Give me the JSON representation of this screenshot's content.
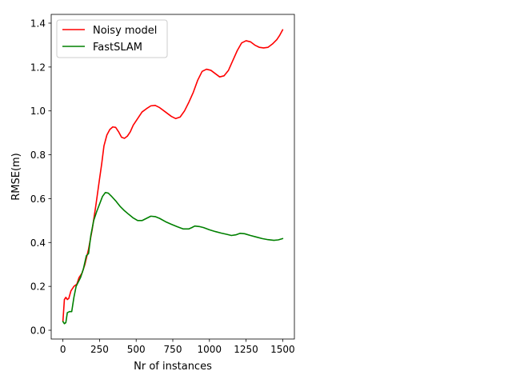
{
  "chart_data": {
    "type": "line",
    "title": "",
    "xlabel": "Nr of instances",
    "ylabel": "RMSE(m)",
    "xlim": [
      -80,
      1580
    ],
    "ylim": [
      -0.04,
      1.44
    ],
    "xticks": [
      0,
      250,
      500,
      750,
      1000,
      1250,
      1500
    ],
    "xtick_labels": [
      "0",
      "250",
      "500",
      "750",
      "1000",
      "1250",
      "1500"
    ],
    "yticks": [
      0.0,
      0.2,
      0.4,
      0.6,
      0.8,
      1.0,
      1.2,
      1.4
    ],
    "ytick_labels": [
      "0.0",
      "0.2",
      "0.4",
      "0.6",
      "0.8",
      "1.0",
      "1.2",
      "1.4"
    ],
    "grid": false,
    "legend_position": "upper-left",
    "series": [
      {
        "name": "Noisy model",
        "color": "#ff0000",
        "points": [
          [
            0,
            0.04
          ],
          [
            10,
            0.14
          ],
          [
            20,
            0.15
          ],
          [
            30,
            0.14
          ],
          [
            40,
            0.145
          ],
          [
            55,
            0.18
          ],
          [
            75,
            0.2
          ],
          [
            95,
            0.21
          ],
          [
            110,
            0.24
          ],
          [
            130,
            0.26
          ],
          [
            150,
            0.3
          ],
          [
            175,
            0.37
          ],
          [
            200,
            0.46
          ],
          [
            225,
            0.57
          ],
          [
            250,
            0.69
          ],
          [
            265,
            0.76
          ],
          [
            280,
            0.84
          ],
          [
            300,
            0.89
          ],
          [
            320,
            0.915
          ],
          [
            340,
            0.927
          ],
          [
            360,
            0.925
          ],
          [
            380,
            0.905
          ],
          [
            400,
            0.88
          ],
          [
            420,
            0.875
          ],
          [
            440,
            0.885
          ],
          [
            460,
            0.905
          ],
          [
            480,
            0.935
          ],
          [
            510,
            0.965
          ],
          [
            540,
            0.995
          ],
          [
            570,
            1.01
          ],
          [
            600,
            1.023
          ],
          [
            630,
            1.025
          ],
          [
            660,
            1.015
          ],
          [
            700,
            0.995
          ],
          [
            740,
            0.975
          ],
          [
            770,
            0.965
          ],
          [
            800,
            0.972
          ],
          [
            830,
            1.0
          ],
          [
            860,
            1.04
          ],
          [
            890,
            1.085
          ],
          [
            920,
            1.14
          ],
          [
            950,
            1.18
          ],
          [
            980,
            1.19
          ],
          [
            1010,
            1.185
          ],
          [
            1040,
            1.17
          ],
          [
            1070,
            1.155
          ],
          [
            1100,
            1.16
          ],
          [
            1130,
            1.185
          ],
          [
            1160,
            1.23
          ],
          [
            1190,
            1.275
          ],
          [
            1220,
            1.31
          ],
          [
            1250,
            1.32
          ],
          [
            1280,
            1.315
          ],
          [
            1310,
            1.3
          ],
          [
            1340,
            1.29
          ],
          [
            1370,
            1.287
          ],
          [
            1400,
            1.29
          ],
          [
            1430,
            1.305
          ],
          [
            1460,
            1.325
          ],
          [
            1480,
            1.345
          ],
          [
            1500,
            1.37
          ]
        ]
      },
      {
        "name": "FastSLAM",
        "color": "#008000",
        "points": [
          [
            0,
            0.04
          ],
          [
            10,
            0.03
          ],
          [
            20,
            0.035
          ],
          [
            30,
            0.08
          ],
          [
            45,
            0.085
          ],
          [
            60,
            0.085
          ],
          [
            75,
            0.15
          ],
          [
            90,
            0.2
          ],
          [
            105,
            0.22
          ],
          [
            120,
            0.24
          ],
          [
            140,
            0.28
          ],
          [
            160,
            0.34
          ],
          [
            175,
            0.35
          ],
          [
            190,
            0.43
          ],
          [
            210,
            0.5
          ],
          [
            230,
            0.54
          ],
          [
            250,
            0.575
          ],
          [
            270,
            0.61
          ],
          [
            290,
            0.628
          ],
          [
            310,
            0.625
          ],
          [
            330,
            0.612
          ],
          [
            360,
            0.59
          ],
          [
            390,
            0.565
          ],
          [
            420,
            0.545
          ],
          [
            450,
            0.528
          ],
          [
            480,
            0.512
          ],
          [
            510,
            0.5
          ],
          [
            540,
            0.5
          ],
          [
            570,
            0.51
          ],
          [
            600,
            0.52
          ],
          [
            630,
            0.518
          ],
          [
            660,
            0.51
          ],
          [
            700,
            0.495
          ],
          [
            740,
            0.483
          ],
          [
            780,
            0.472
          ],
          [
            820,
            0.462
          ],
          [
            860,
            0.462
          ],
          [
            880,
            0.468
          ],
          [
            900,
            0.475
          ],
          [
            930,
            0.473
          ],
          [
            960,
            0.468
          ],
          [
            1000,
            0.458
          ],
          [
            1040,
            0.45
          ],
          [
            1080,
            0.443
          ],
          [
            1120,
            0.437
          ],
          [
            1150,
            0.432
          ],
          [
            1180,
            0.435
          ],
          [
            1210,
            0.442
          ],
          [
            1240,
            0.44
          ],
          [
            1280,
            0.432
          ],
          [
            1320,
            0.425
          ],
          [
            1360,
            0.418
          ],
          [
            1400,
            0.413
          ],
          [
            1440,
            0.41
          ],
          [
            1470,
            0.412
          ],
          [
            1500,
            0.418
          ]
        ]
      }
    ]
  }
}
